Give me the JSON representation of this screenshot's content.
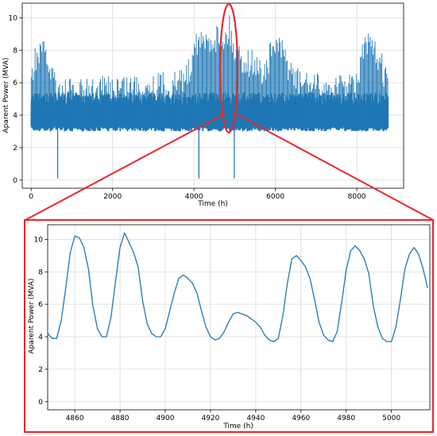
{
  "colors": {
    "series": "#1f77b4",
    "highlight": "#e8272a",
    "grid": "#d9d9d9",
    "axis": "#000000"
  },
  "chart_data": [
    {
      "type": "line",
      "xlabel": "Time (h)",
      "ylabel": "Aparent Power (MVA)",
      "xlim": [
        -220,
        9150
      ],
      "ylim": [
        -0.5,
        10.9
      ],
      "xticks": [
        0,
        2000,
        4000,
        6000,
        8000
      ],
      "yticks": [
        0,
        2,
        4,
        6,
        8,
        10
      ],
      "grid": true,
      "x_range_of_data": [
        0,
        8760
      ],
      "daily_peak_envelope": {
        "x": [
          0,
          100,
          300,
          700,
          900,
          1500,
          2000,
          2600,
          3000,
          3500,
          3900,
          4000,
          4200,
          4500,
          4800,
          4850,
          5000,
          5200,
          5500,
          5700,
          6000,
          6200,
          6500,
          7000,
          7500,
          8000,
          8200,
          8500,
          8760
        ],
        "y": [
          6.8,
          8.5,
          8.7,
          6.4,
          6.3,
          6.3,
          6.6,
          6.7,
          6.7,
          6.7,
          7.6,
          9.7,
          9.2,
          9.7,
          9.6,
          10.4,
          8.8,
          8.3,
          8.0,
          7.4,
          9.3,
          8.5,
          7.0,
          6.6,
          6.5,
          6.7,
          9.3,
          8.5,
          7.0
        ]
      },
      "daily_base_level": 3.2,
      "dips_to_zero": [
        {
          "x": 650,
          "y": 0.1
        },
        {
          "x": 4120,
          "y": 0.1
        },
        {
          "x": 4990,
          "y": 0.1
        }
      ],
      "highlight_window_x": [
        4848,
        5016
      ]
    },
    {
      "type": "line",
      "xlabel": "Time (h)",
      "ylabel": "Aparent Power (MVA)",
      "xlim": [
        4848,
        5017
      ],
      "ylim": [
        -0.5,
        10.9
      ],
      "xticks": [
        4860,
        4880,
        4900,
        4920,
        4940,
        4960,
        4980,
        5000
      ],
      "yticks": [
        0,
        2,
        4,
        6,
        8,
        10
      ],
      "grid": true,
      "series": [
        {
          "x": [
            4848,
            4850,
            4852,
            4854,
            4856,
            4858,
            4860,
            4862,
            4864,
            4866,
            4868,
            4870,
            4872,
            4874,
            4876,
            4878,
            4880,
            4882,
            4884,
            4886,
            4888,
            4890,
            4892,
            4894,
            4896,
            4898,
            4900,
            4902,
            4904,
            4906,
            4908,
            4910,
            4912,
            4914,
            4916,
            4918,
            4920,
            4922,
            4924,
            4926,
            4928,
            4930,
            4932,
            4934,
            4936,
            4938,
            4940,
            4942,
            4944,
            4946,
            4948,
            4950,
            4952,
            4954,
            4956,
            4958,
            4960,
            4962,
            4964,
            4966,
            4968,
            4970,
            4972,
            4974,
            4976,
            4978,
            4980,
            4982,
            4984,
            4986,
            4988,
            4990,
            4992,
            4994,
            4996,
            4998,
            5000,
            5002,
            5004,
            5006,
            5008,
            5010,
            5012,
            5014,
            5016
          ],
          "y": [
            4.2,
            3.9,
            3.9,
            5.0,
            7.0,
            9.2,
            10.2,
            10.1,
            9.5,
            8.2,
            5.9,
            4.5,
            4.0,
            4.0,
            5.2,
            7.4,
            9.5,
            10.4,
            9.8,
            9.2,
            8.3,
            6.2,
            4.8,
            4.2,
            4.0,
            4.0,
            4.5,
            5.6,
            6.7,
            7.6,
            7.8,
            7.6,
            7.3,
            6.7,
            5.6,
            4.6,
            4.0,
            3.8,
            3.9,
            4.3,
            4.9,
            5.4,
            5.5,
            5.4,
            5.3,
            5.1,
            4.9,
            4.6,
            4.1,
            3.8,
            3.7,
            3.9,
            5.3,
            7.3,
            8.8,
            9.0,
            8.7,
            8.3,
            7.6,
            6.3,
            4.9,
            4.1,
            3.8,
            3.7,
            4.3,
            6.1,
            8.1,
            9.3,
            9.6,
            9.3,
            8.8,
            7.9,
            5.9,
            4.6,
            3.9,
            3.7,
            3.7,
            4.6,
            6.3,
            8.2,
            9.1,
            9.5,
            9.1,
            8.2,
            7.0
          ]
        }
      ]
    }
  ]
}
